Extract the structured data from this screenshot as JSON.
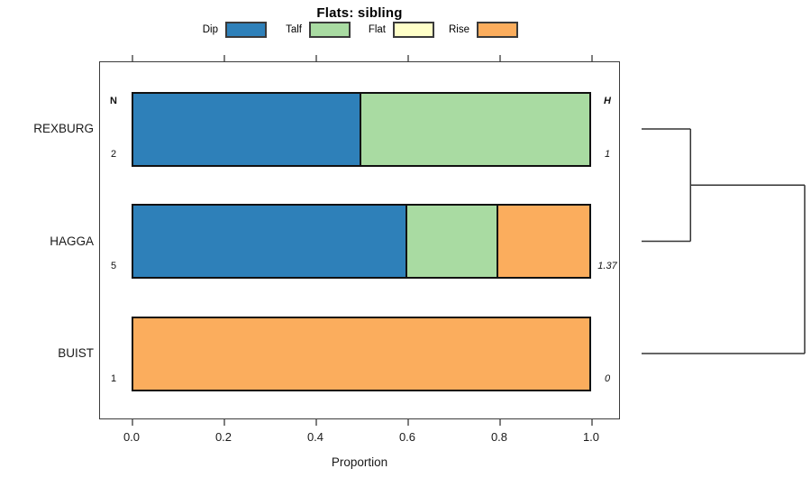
{
  "title": "Flats: sibling",
  "legend": [
    {
      "label": "Dip",
      "color": "#2e80b9"
    },
    {
      "label": "Talf",
      "color": "#a9dba2"
    },
    {
      "label": "Flat",
      "color": "#ffffc8"
    },
    {
      "label": "Rise",
      "color": "#fbad5d"
    }
  ],
  "chart_data": {
    "type": "bar",
    "orientation": "horizontal",
    "stacked": true,
    "title": "Flats: sibling",
    "xlabel": "Proportion",
    "xlim": [
      0,
      1
    ],
    "xticks": [
      "0.0",
      "0.2",
      "0.4",
      "0.6",
      "0.8",
      "1.0"
    ],
    "xtick_values": [
      0.0,
      0.2,
      0.4,
      0.6,
      0.8,
      1.0
    ],
    "grid": false,
    "legend_position": "top",
    "categories": [
      "REXBURG",
      "HAGGA",
      "BUIST"
    ],
    "series": [
      {
        "name": "Dip",
        "color": "#2e80b9",
        "values": [
          0.5,
          0.6,
          0.0
        ]
      },
      {
        "name": "Talf",
        "color": "#a9dba2",
        "values": [
          0.5,
          0.2,
          0.0
        ]
      },
      {
        "name": "Flat",
        "color": "#ffffc8",
        "values": [
          0.0,
          0.0,
          0.0
        ]
      },
      {
        "name": "Rise",
        "color": "#fbad5d",
        "values": [
          0.0,
          0.2,
          1.0
        ]
      }
    ],
    "n_column": {
      "header": "N",
      "values": [
        "2",
        "5",
        "1"
      ]
    },
    "h_column": {
      "header": "H",
      "values": [
        "1",
        "1.37",
        "0"
      ]
    },
    "dendrogram": {
      "leaves": [
        "REXBURG",
        "HAGGA",
        "BUIST"
      ],
      "merges": [
        {
          "members": [
            "REXBURG",
            "HAGGA"
          ],
          "height": 0.3
        },
        {
          "members": [
            "REXBURG+HAGGA",
            "BUIST"
          ],
          "height": 1.0
        }
      ]
    }
  }
}
